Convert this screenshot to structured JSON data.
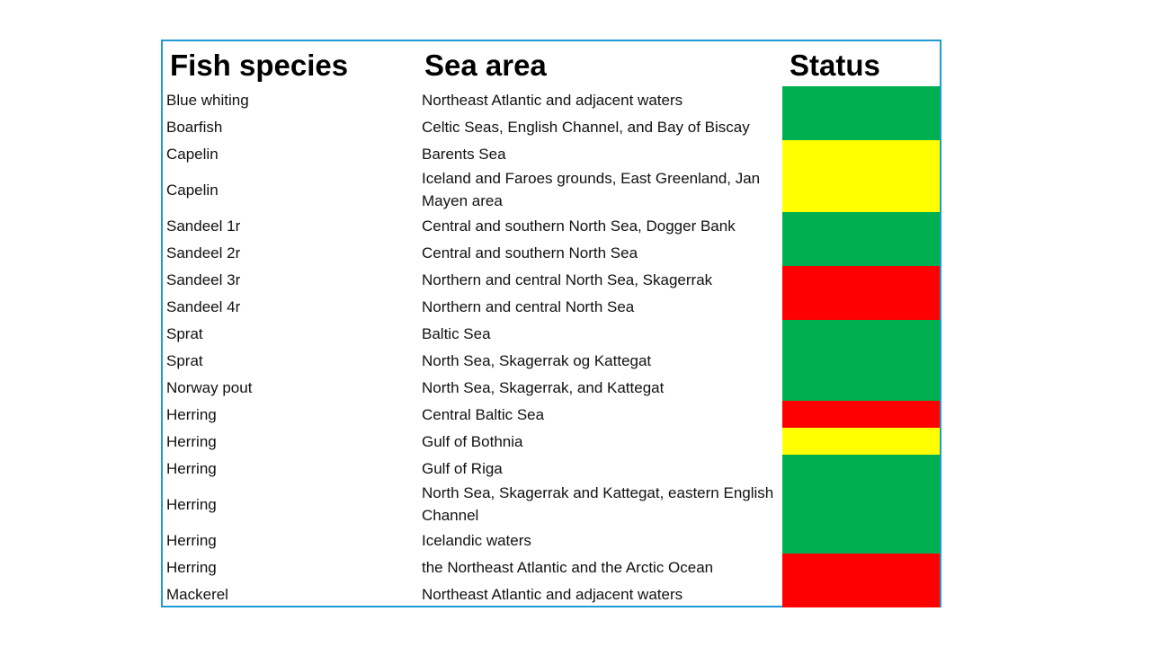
{
  "table": {
    "headers": {
      "species": "Fish species",
      "area": "Sea area",
      "status": "Status"
    },
    "status_colors": {
      "green": "#00b050",
      "yellow": "#ffff00",
      "red": "#ff0000"
    },
    "rows": [
      {
        "species": "Blue whiting",
        "area": "Northeast Atlantic and adjacent waters",
        "status": "green"
      },
      {
        "species": "Boarfish",
        "area": "Celtic Seas, English Channel, and Bay of Biscay",
        "status": "green"
      },
      {
        "species": "Capelin",
        "area": "Barents Sea",
        "status": "yellow"
      },
      {
        "species": "Capelin",
        "area": "Iceland and Faroes grounds, East Greenland, Jan Mayen area",
        "status": "yellow"
      },
      {
        "species": "Sandeel 1r",
        "area": "Central and southern North Sea, Dogger Bank",
        "status": "green"
      },
      {
        "species": "Sandeel 2r",
        "area": "Central and southern North Sea",
        "status": "green"
      },
      {
        "species": "Sandeel 3r",
        "area": "Northern and central North Sea, Skagerrak",
        "status": "red"
      },
      {
        "species": "Sandeel 4r",
        "area": "Northern and central North Sea",
        "status": "red"
      },
      {
        "species": "Sprat",
        "area": "Baltic Sea",
        "status": "green"
      },
      {
        "species": "Sprat",
        "area": "North Sea, Skagerrak og Kattegat",
        "status": "green"
      },
      {
        "species": "Norway pout",
        "area": "North Sea, Skagerrak, and Kattegat",
        "status": "green"
      },
      {
        "species": "Herring",
        "area": "Central Baltic Sea",
        "status": "red"
      },
      {
        "species": "Herring",
        "area": "Gulf of Bothnia",
        "status": "yellow"
      },
      {
        "species": "Herring",
        "area": "Gulf of Riga",
        "status": "green"
      },
      {
        "species": "Herring",
        "area": "North Sea, Skagerrak and Kattegat, eastern English Channel",
        "status": "green"
      },
      {
        "species": "Herring",
        "area": "Icelandic waters",
        "status": "green"
      },
      {
        "species": "Herring",
        "area": "the Northeast Atlantic and the Arctic Ocean",
        "status": "red"
      },
      {
        "species": "Mackerel",
        "area": "Northeast Atlantic and adjacent waters",
        "status": "red"
      }
    ]
  }
}
